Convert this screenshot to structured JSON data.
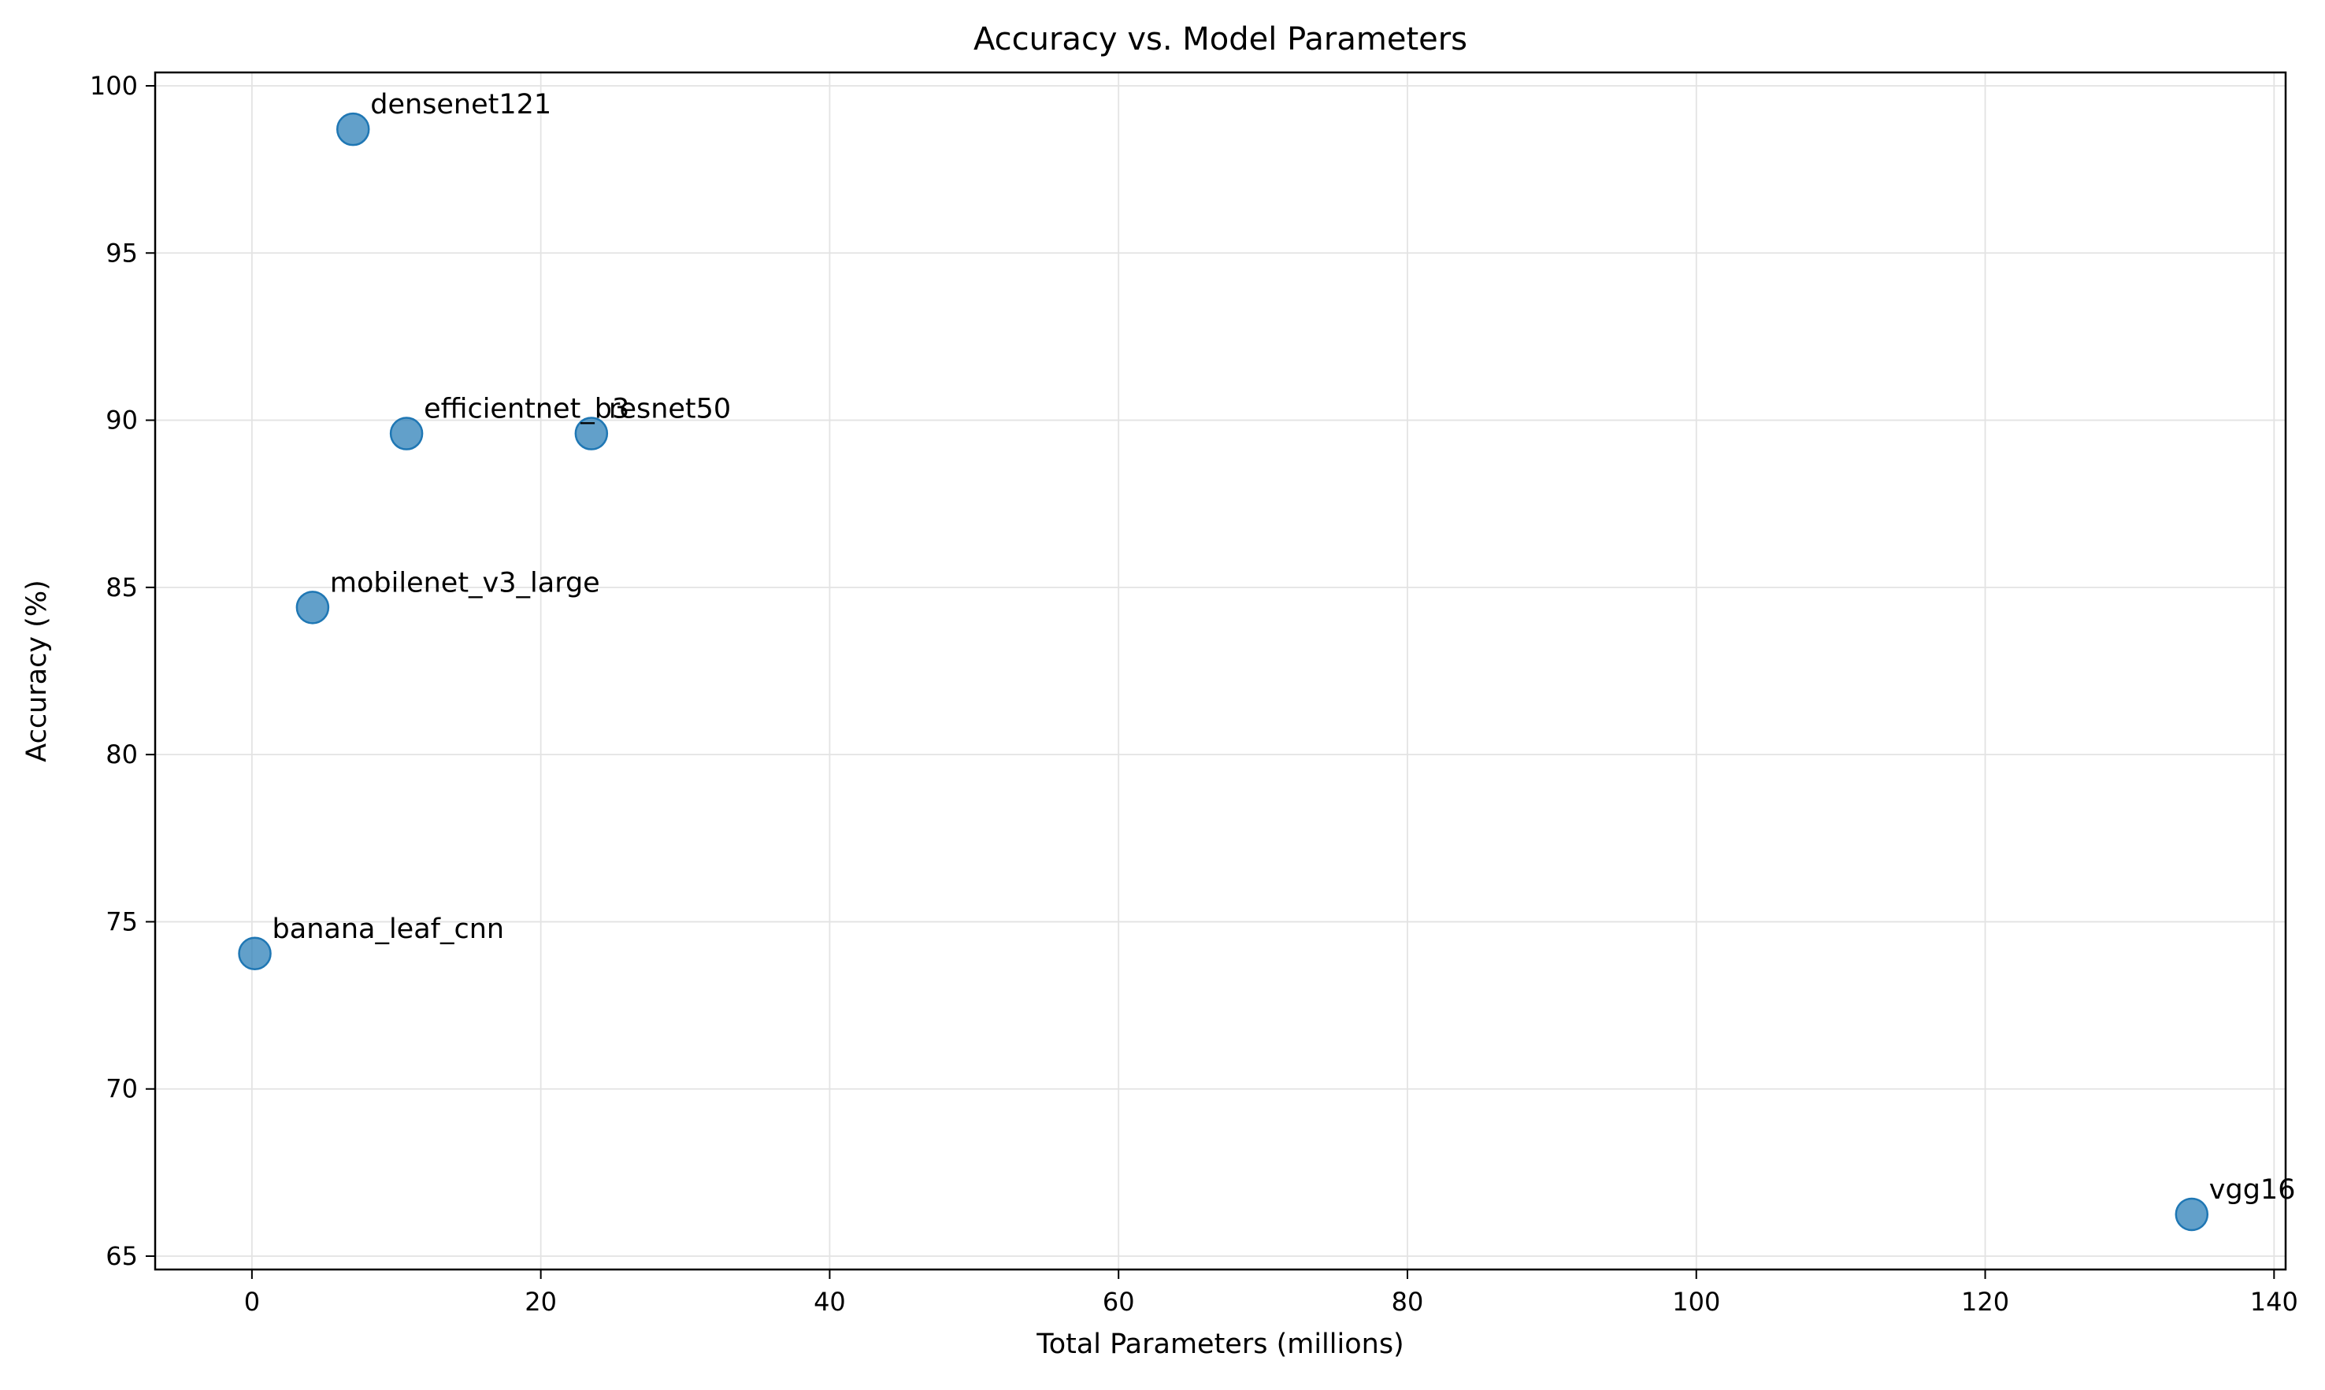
{
  "colors": {
    "point_fill": "#1f77b4",
    "point_alpha": 0.7,
    "grid": "#e3e3e3",
    "axis": "#000000",
    "background": "#ffffff"
  },
  "chart_data": {
    "type": "scatter",
    "title": "Accuracy vs. Model Parameters",
    "xlabel": "Total Parameters (millions)",
    "ylabel": "Accuracy (%)",
    "xlim": [
      -6.7,
      140.8
    ],
    "ylim": [
      64.6,
      100.4
    ],
    "xticks": [
      0,
      20,
      40,
      60,
      80,
      100,
      120,
      140
    ],
    "yticks": [
      65,
      70,
      75,
      80,
      85,
      90,
      95,
      100
    ],
    "grid": true,
    "points": [
      {
        "label": "densenet121",
        "x": 7.0,
        "y": 98.7
      },
      {
        "label": "efficientnet_b3",
        "x": 10.7,
        "y": 89.6
      },
      {
        "label": "resnet50",
        "x": 23.5,
        "y": 89.6
      },
      {
        "label": "mobilenet_v3_large",
        "x": 4.2,
        "y": 84.4
      },
      {
        "label": "banana_leaf_cnn",
        "x": 0.2,
        "y": 74.05
      },
      {
        "label": "vgg16",
        "x": 134.3,
        "y": 66.25
      }
    ]
  }
}
